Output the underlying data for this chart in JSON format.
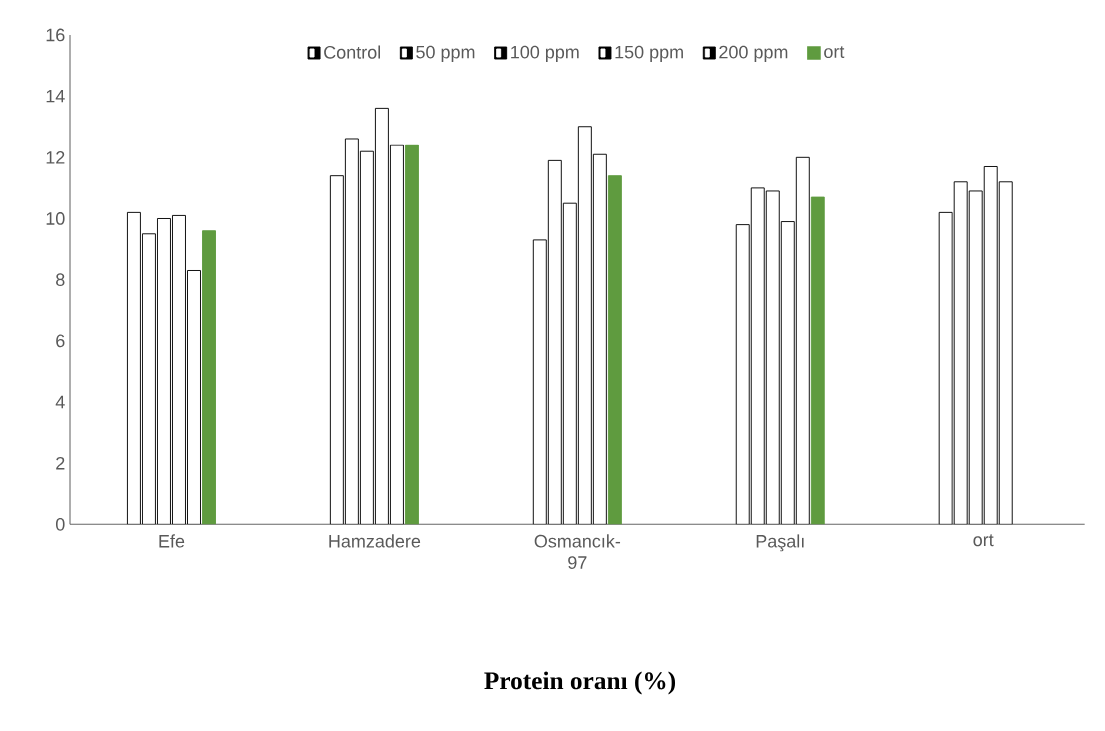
{
  "chart_data": {
    "type": "bar",
    "title": "Protein oranı (%)",
    "categories": [
      "Efe",
      "Hamzadere",
      "Osmancık-97",
      "Paşalı",
      "ort"
    ],
    "series": [
      {
        "name": "Control",
        "color": "#ffffff",
        "values": [
          10.2,
          11.4,
          9.3,
          9.8,
          10.2
        ]
      },
      {
        "name": "50 ppm",
        "color": "#ffffff",
        "values": [
          9.5,
          12.6,
          11.9,
          11.0,
          11.2
        ]
      },
      {
        "name": "100 ppm",
        "color": "#ffffff",
        "values": [
          10.0,
          12.2,
          10.5,
          10.9,
          10.9
        ]
      },
      {
        "name": "150 ppm",
        "color": "#ffffff",
        "values": [
          10.1,
          13.6,
          13.0,
          9.9,
          11.7
        ]
      },
      {
        "name": "200 ppm",
        "color": "#ffffff",
        "values": [
          8.3,
          12.4,
          12.1,
          12.0,
          11.2
        ]
      },
      {
        "name": "ort",
        "color": "#5f9b3f",
        "values": [
          9.6,
          12.4,
          11.4,
          10.7,
          null
        ]
      }
    ],
    "ylim": [
      0,
      16
    ],
    "yticks": [
      0,
      2,
      4,
      6,
      8,
      10,
      12,
      14,
      16
    ],
    "grid": false,
    "legend": "top"
  }
}
